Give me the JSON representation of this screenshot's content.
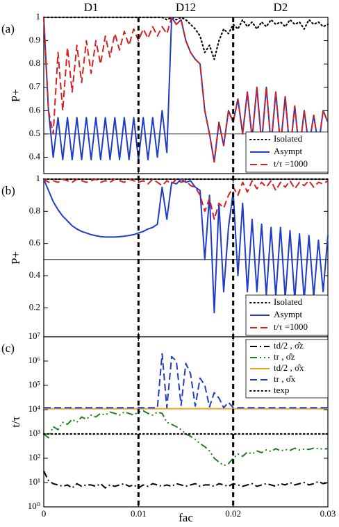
{
  "chart_data": [
    {
      "type": "line",
      "panel_label": "(a)",
      "ylabel": "P+",
      "regions": [
        "D1",
        "D12",
        "D2"
      ],
      "vlines": [
        0.01,
        0.02
      ],
      "hlines": [
        0.5
      ],
      "xlim": [
        0,
        0.03
      ],
      "ylim": [
        0.33,
        1
      ],
      "yticks": [
        0.4,
        0.5,
        0.6,
        0.7,
        0.8,
        0.9,
        1
      ],
      "legend": "lower right",
      "x": [
        0,
        0.0005,
        0.001,
        0.0015,
        0.002,
        0.0025,
        0.003,
        0.0035,
        0.004,
        0.0045,
        0.005,
        0.0055,
        0.006,
        0.0065,
        0.007,
        0.0075,
        0.008,
        0.0085,
        0.009,
        0.0095,
        0.01,
        0.0105,
        0.011,
        0.0115,
        0.012,
        0.0125,
        0.013,
        0.0135,
        0.014,
        0.0145,
        0.015,
        0.0155,
        0.016,
        0.0165,
        0.017,
        0.0175,
        0.018,
        0.0185,
        0.019,
        0.0195,
        0.02,
        0.0205,
        0.021,
        0.0215,
        0.022,
        0.0225,
        0.023,
        0.0235,
        0.024,
        0.0245,
        0.025,
        0.0255,
        0.026,
        0.0265,
        0.027,
        0.0275,
        0.028,
        0.0285,
        0.029,
        0.0295,
        0.03
      ],
      "series": [
        {
          "name": "Isolated",
          "color": "#000000",
          "dash": "dotted",
          "values": [
            1,
            1,
            1,
            1,
            1,
            1,
            1,
            1,
            1,
            1,
            1,
            1,
            1,
            1,
            1,
            1,
            1,
            1,
            1,
            1,
            1,
            1,
            1,
            1,
            1,
            1,
            0.99,
            1,
            0.99,
            1,
            0.99,
            0.97,
            0.95,
            0.92,
            0.85,
            0.88,
            0.82,
            0.9,
            0.95,
            0.93,
            0.97,
            0.95,
            0.99,
            0.96,
            0.98,
            0.95,
            0.98,
            0.96,
            0.99,
            0.97,
            0.98,
            0.96,
            0.99,
            0.97,
            0.98,
            0.95,
            0.99,
            0.97,
            0.98,
            0.96,
            0.97
          ]
        },
        {
          "name": "Asympt",
          "color": "#1f3cc8",
          "dash": "solid",
          "values": [
            1,
            0.6,
            0.4,
            0.57,
            0.39,
            0.57,
            0.39,
            0.57,
            0.39,
            0.57,
            0.39,
            0.57,
            0.39,
            0.57,
            0.39,
            0.57,
            0.39,
            0.57,
            0.39,
            0.57,
            0.39,
            0.57,
            0.39,
            0.57,
            0.4,
            0.6,
            0.42,
            1,
            0.97,
            0.99,
            0.9,
            0.85,
            0.82,
            0.8,
            0.6,
            0.5,
            0.38,
            0.55,
            0.45,
            0.6,
            0.55,
            0.65,
            0.5,
            0.68,
            0.48,
            0.7,
            0.46,
            0.7,
            0.45,
            0.68,
            0.45,
            0.66,
            0.42,
            0.62,
            0.42,
            0.6,
            0.45,
            0.58,
            0.45,
            0.6,
            0.55
          ]
        },
        {
          "name": "t/τ =1000",
          "color": "#d42020",
          "dash": "dashed",
          "values": [
            1,
            0.6,
            0.5,
            0.85,
            0.6,
            0.87,
            0.68,
            0.88,
            0.72,
            0.9,
            0.76,
            0.9,
            0.8,
            0.92,
            0.83,
            0.93,
            0.86,
            0.94,
            0.88,
            0.95,
            0.9,
            0.95,
            0.91,
            0.96,
            0.92,
            0.96,
            0.93,
            1,
            0.97,
            0.99,
            0.9,
            0.85,
            0.82,
            0.8,
            0.6,
            0.5,
            0.38,
            0.55,
            0.45,
            0.6,
            0.55,
            0.65,
            0.5,
            0.68,
            0.48,
            0.7,
            0.46,
            0.7,
            0.45,
            0.68,
            0.45,
            0.66,
            0.42,
            0.62,
            0.42,
            0.6,
            0.45,
            0.58,
            0.45,
            0.6,
            0.55
          ]
        }
      ]
    },
    {
      "type": "line",
      "panel_label": "(b)",
      "ylabel": "P+",
      "hlines": [
        0.5
      ],
      "xlim": [
        0,
        0.03
      ],
      "ylim": [
        0.02,
        1
      ],
      "yticks": [
        0.2,
        0.4,
        0.6,
        0.8,
        1
      ],
      "legend": "lower right",
      "x": [
        0,
        0.0005,
        0.001,
        0.0015,
        0.002,
        0.0025,
        0.003,
        0.0035,
        0.004,
        0.0045,
        0.005,
        0.0055,
        0.006,
        0.0065,
        0.007,
        0.0075,
        0.008,
        0.0085,
        0.009,
        0.0095,
        0.01,
        0.0105,
        0.011,
        0.0115,
        0.012,
        0.0125,
        0.013,
        0.0135,
        0.014,
        0.0145,
        0.015,
        0.0155,
        0.016,
        0.0165,
        0.017,
        0.0175,
        0.018,
        0.0185,
        0.019,
        0.0195,
        0.02,
        0.0205,
        0.021,
        0.0215,
        0.022,
        0.0225,
        0.023,
        0.0235,
        0.024,
        0.0245,
        0.025,
        0.0255,
        0.026,
        0.0265,
        0.027,
        0.0275,
        0.028,
        0.0285,
        0.029,
        0.0295,
        0.03
      ],
      "series": [
        {
          "name": "Isolated",
          "color": "#000000",
          "dash": "dotted",
          "values": [
            1,
            1,
            1,
            1,
            1,
            1,
            1,
            1,
            1,
            1,
            1,
            1,
            1,
            1,
            1,
            1,
            1,
            1,
            1,
            1,
            1,
            1,
            1,
            1,
            1,
            1,
            1,
            1,
            1,
            1,
            1,
            1,
            1,
            1,
            1,
            1,
            1,
            1,
            1,
            1,
            1,
            1,
            1,
            1,
            1,
            1,
            1,
            1,
            1,
            1,
            1,
            1,
            1,
            1,
            1,
            1,
            1,
            1,
            1,
            1,
            1
          ]
        },
        {
          "name": "Asympt",
          "color": "#1f3cc8",
          "dash": "solid",
          "values": [
            1,
            0.93,
            0.86,
            0.81,
            0.77,
            0.74,
            0.71,
            0.69,
            0.675,
            0.665,
            0.655,
            0.648,
            0.643,
            0.64,
            0.64,
            0.64,
            0.642,
            0.645,
            0.65,
            0.655,
            0.665,
            0.675,
            0.69,
            0.7,
            0.72,
            0.95,
            0.75,
            0.98,
            0.97,
            1,
            0.98,
            0.99,
            0.95,
            0.93,
            0.5,
            0.9,
            0.17,
            0.85,
            0.3,
            0.7,
            0.92,
            0.4,
            0.85,
            0.3,
            0.75,
            0.3,
            0.72,
            0.28,
            0.7,
            0.27,
            0.7,
            0.26,
            0.68,
            0.25,
            0.66,
            0.25,
            0.65,
            0.27,
            0.62,
            0.3,
            0.65
          ]
        },
        {
          "name": "t/τ =1000",
          "color": "#d42020",
          "dash": "dashed",
          "values": [
            1,
            0.98,
            0.99,
            0.98,
            1,
            0.99,
            0.98,
            1,
            0.99,
            0.98,
            0.99,
            1,
            0.98,
            0.99,
            0.98,
            1,
            0.99,
            0.98,
            1,
            0.99,
            0.98,
            0.99,
            0.97,
            1,
            0.98,
            0.96,
            0.99,
            0.97,
            1,
            0.98,
            0.99,
            0.96,
            0.95,
            0.9,
            0.8,
            0.88,
            0.75,
            0.85,
            0.82,
            0.9,
            0.95,
            0.9,
            0.98,
            0.92,
            0.99,
            0.94,
            0.98,
            0.95,
            0.99,
            0.93,
            0.98,
            0.95,
            0.99,
            0.94,
            0.98,
            0.96,
            0.99,
            0.95,
            0.98,
            0.97,
            0.99
          ]
        }
      ]
    },
    {
      "type": "line",
      "panel_label": "(c)",
      "ylabel": "t/τ",
      "xlabel": "fac",
      "yscale": "log",
      "xlim": [
        0,
        0.03
      ],
      "xticks": [
        0,
        0.01,
        0.02,
        0.03
      ],
      "ylim": [
        1,
        10000000
      ],
      "yticks": [
        {
          "value": 1,
          "label": "10⁰"
        },
        {
          "value": 10,
          "label": "10¹"
        },
        {
          "value": 100,
          "label": "10²"
        },
        {
          "value": 1000,
          "label": "10³"
        },
        {
          "value": 10000,
          "label": "10⁴"
        },
        {
          "value": 100000,
          "label": "10⁵"
        },
        {
          "value": 1000000,
          "label": "10⁶"
        },
        {
          "value": 10000000,
          "label": "10⁷"
        }
      ],
      "legend": "upper right",
      "x": [
        0,
        0.0005,
        0.001,
        0.0015,
        0.002,
        0.0025,
        0.003,
        0.0035,
        0.004,
        0.0045,
        0.005,
        0.0055,
        0.006,
        0.0065,
        0.007,
        0.0075,
        0.008,
        0.0085,
        0.009,
        0.0095,
        0.01,
        0.0105,
        0.011,
        0.0115,
        0.012,
        0.0125,
        0.013,
        0.0135,
        0.014,
        0.0145,
        0.015,
        0.0155,
        0.016,
        0.0165,
        0.017,
        0.0175,
        0.018,
        0.0185,
        0.019,
        0.0195,
        0.02,
        0.0205,
        0.021,
        0.0215,
        0.022,
        0.0225,
        0.023,
        0.0235,
        0.024,
        0.0245,
        0.025,
        0.0255,
        0.026,
        0.0265,
        0.027,
        0.0275,
        0.028,
        0.0285,
        0.029,
        0.0295,
        0.03
      ],
      "series": [
        {
          "name": "td/2 , σ̂z",
          "color": "#000000",
          "dash": "dashdot",
          "values": [
            30,
            12,
            9,
            8,
            7,
            8,
            6,
            9,
            7,
            8,
            8,
            7,
            9,
            6,
            8,
            7,
            8,
            9,
            7,
            8,
            6,
            8,
            7,
            9,
            8,
            7,
            8,
            7,
            9,
            8,
            7,
            8,
            9,
            7,
            8,
            8,
            7,
            9,
            8,
            7,
            9,
            8,
            7,
            8,
            9,
            7,
            8,
            9,
            8,
            7,
            9,
            8,
            10,
            8,
            9,
            10,
            8,
            9,
            11,
            9,
            10
          ]
        },
        {
          "name": "tr , σ̂z",
          "color": "#1e7d1e",
          "dash": "dashdotdot",
          "values": [
            1000,
            700,
            2000,
            1500,
            3000,
            2500,
            4000,
            3000,
            5000,
            4000,
            6000,
            5000,
            7000,
            6000,
            8000,
            7000,
            6000,
            8000,
            7000,
            6000,
            8000,
            9000,
            7000,
            6000,
            8000,
            7000,
            3000,
            2500,
            2000,
            1500,
            1000,
            800,
            600,
            400,
            300,
            200,
            100,
            70,
            50,
            60,
            100,
            150,
            120,
            180,
            150,
            200,
            170,
            220,
            190,
            250,
            200,
            230,
            210,
            260,
            220,
            240,
            230,
            260,
            250,
            240,
            250
          ]
        },
        {
          "name": "td/2 , σ̂x",
          "color": "#f0a020",
          "dash": "solid",
          "values": [
            11000,
            11000,
            11000,
            11000,
            11000,
            11000,
            11000,
            11000,
            11000,
            11000,
            11000,
            11000,
            11000,
            11000,
            11000,
            11000,
            11000,
            11000,
            11000,
            11000,
            11000,
            11000,
            11000,
            11000,
            11000,
            11000,
            11000,
            11000,
            11000,
            11000,
            11000,
            11000,
            11000,
            11000,
            11000,
            11000,
            11000,
            11000,
            11000,
            11000,
            11000,
            11000,
            11000,
            11000,
            11000,
            11000,
            11000,
            11000,
            11000,
            11000,
            11000,
            11000,
            11000,
            11000,
            11000,
            11000,
            11000,
            11000,
            11000,
            11000,
            11000
          ]
        },
        {
          "name": "tr , σ̂x",
          "color": "#1f3cc8",
          "dash": "dashed",
          "values": [
            12000,
            12000,
            12000,
            12000,
            12000,
            12000,
            12000,
            12000,
            12000,
            12000,
            12000,
            12000,
            12000,
            12000,
            12000,
            12000,
            12000,
            12000,
            12000,
            12000,
            12000,
            12000,
            12000,
            12000,
            12000,
            2000000,
            12000,
            1500000,
            1000000,
            15000,
            800000,
            300000,
            14000,
            200000,
            100000,
            13000,
            50000,
            30000,
            12000,
            20000,
            12000,
            12000,
            12000,
            12000,
            12000,
            12000,
            12000,
            12000,
            12000,
            12000,
            12000,
            12000,
            12000,
            12000,
            12000,
            12000,
            12000,
            12000,
            12000,
            12000,
            12000
          ]
        },
        {
          "name": "texp",
          "color": "#000000",
          "dash": "dotted",
          "values": [
            1000,
            1000,
            1000,
            1000,
            1000,
            1000,
            1000,
            1000,
            1000,
            1000,
            1000,
            1000,
            1000,
            1000,
            1000,
            1000,
            1000,
            1000,
            1000,
            1000,
            1000,
            1000,
            1000,
            1000,
            1000,
            1000,
            1000,
            1000,
            1000,
            1000,
            1000,
            1000,
            1000,
            1000,
            1000,
            1000,
            1000,
            1000,
            1000,
            1000,
            1000,
            1000,
            1000,
            1000,
            1000,
            1000,
            1000,
            1000,
            1000,
            1000,
            1000,
            1000,
            1000,
            1000,
            1000,
            1000,
            1000,
            1000,
            1000,
            1000,
            1000
          ]
        }
      ]
    }
  ]
}
